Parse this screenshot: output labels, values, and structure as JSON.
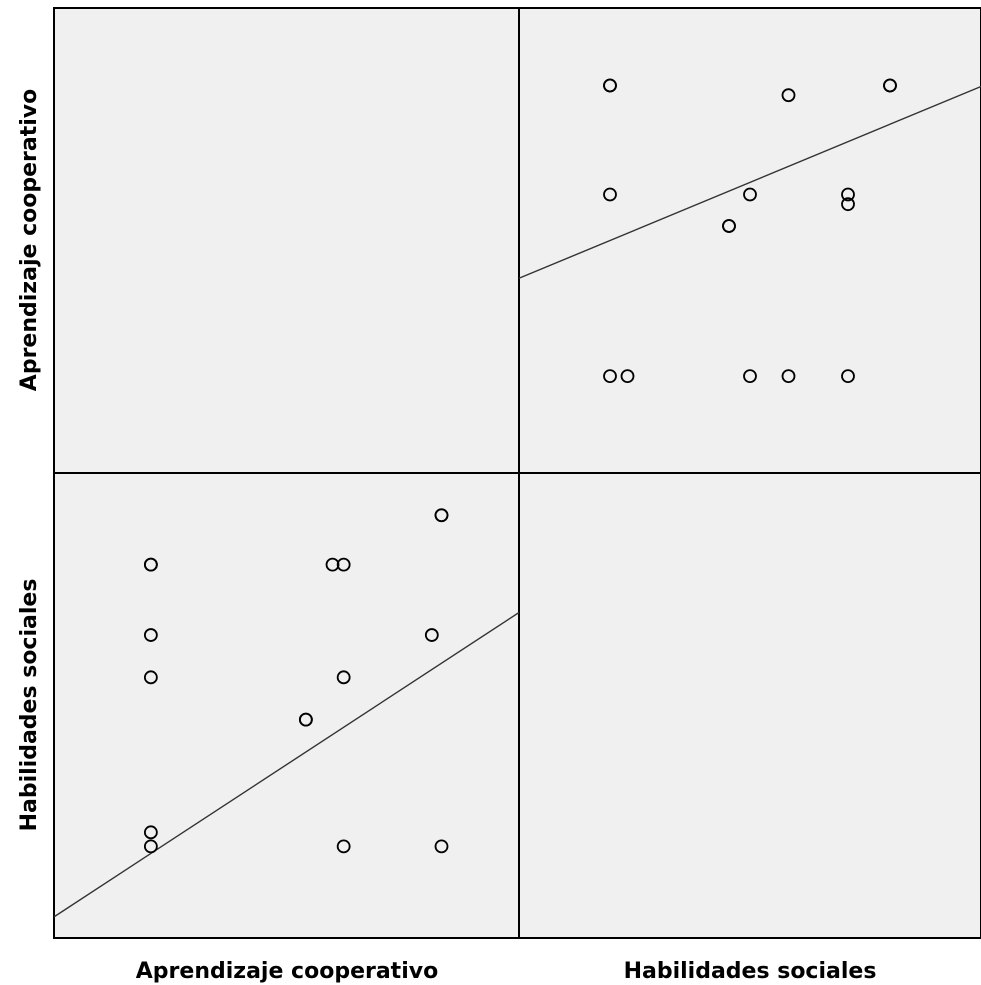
{
  "chart_data": {
    "type": "scatter",
    "variables": [
      "Aprendizaje cooperativo",
      "Habilidades sociales"
    ],
    "background": "#f0f0f0",
    "grid": false,
    "panels": [
      {
        "row": 1,
        "col": 2,
        "x_var": "Habilidades sociales",
        "y_var": "Aprendizaje cooperativo",
        "x_range": [
          0.85,
          4.15
        ],
        "y_range": [
          0.0,
          4.8
        ],
        "fit_line": {
          "intercept": 1.5,
          "slope": 0.6
        },
        "points": [
          {
            "x": 1.5,
            "y": 4.0
          },
          {
            "x": 1.5,
            "y": 4.0
          },
          {
            "x": 2.775,
            "y": 3.9
          },
          {
            "x": 3.5,
            "y": 4.0
          },
          {
            "x": 3.5,
            "y": 4.0
          },
          {
            "x": 1.5,
            "y": 2.875
          },
          {
            "x": 2.5,
            "y": 2.875
          },
          {
            "x": 3.2,
            "y": 2.875
          },
          {
            "x": 3.2,
            "y": 2.775
          },
          {
            "x": 2.35,
            "y": 2.55
          },
          {
            "x": 2.35,
            "y": 2.55
          },
          {
            "x": 1.5,
            "y": 1.0
          },
          {
            "x": 1.625,
            "y": 1.0
          },
          {
            "x": 2.5,
            "y": 1.0
          },
          {
            "x": 2.775,
            "y": 1.0
          },
          {
            "x": 3.2,
            "y": 1.0
          }
        ]
      },
      {
        "row": 2,
        "col": 1,
        "x_var": "Aprendizaje cooperativo",
        "y_var": "Habilidades sociales",
        "x_range": [
          0.0,
          4.8
        ],
        "y_range": [
          0.85,
          4.15
        ],
        "fit_line": {
          "intercept": 1.0,
          "slope": 0.45
        },
        "points": [
          {
            "x": 1.0,
            "y": 3.5
          },
          {
            "x": 1.0,
            "y": 3.5
          },
          {
            "x": 1.0,
            "y": 3.0
          },
          {
            "x": 1.0,
            "y": 2.7
          },
          {
            "x": 1.0,
            "y": 1.6
          },
          {
            "x": 1.0,
            "y": 1.5
          },
          {
            "x": 2.6,
            "y": 2.4
          },
          {
            "x": 2.6,
            "y": 2.4
          },
          {
            "x": 2.875,
            "y": 3.5
          },
          {
            "x": 2.99,
            "y": 3.5
          },
          {
            "x": 2.99,
            "y": 2.7
          },
          {
            "x": 2.99,
            "y": 1.5
          },
          {
            "x": 4.0,
            "y": 3.85
          },
          {
            "x": 4.0,
            "y": 3.85
          },
          {
            "x": 3.9,
            "y": 3.0
          },
          {
            "x": 4.0,
            "y": 1.5
          }
        ]
      }
    ]
  }
}
